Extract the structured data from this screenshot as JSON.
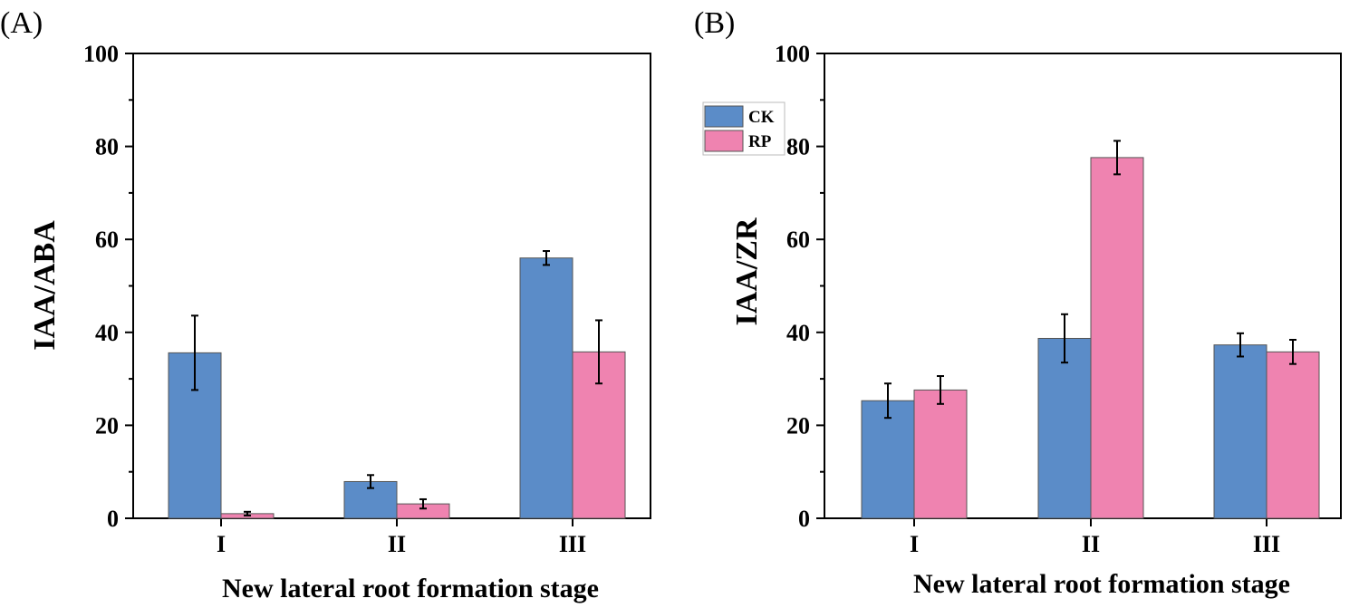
{
  "colors": {
    "CK": "#5b8cc8",
    "RP": "#ef83b0",
    "bar_stroke": "#555555"
  },
  "chart_data": [
    {
      "type": "bar",
      "panel_label": "(A)",
      "categories": [
        "I",
        "II",
        "III"
      ],
      "series": [
        {
          "name": "CK",
          "values": [
            35.6,
            7.9,
            56.0
          ],
          "errors": [
            8.0,
            1.4,
            1.5
          ]
        },
        {
          "name": "RP",
          "values": [
            1.0,
            3.1,
            35.8
          ],
          "errors": [
            0.4,
            1.0,
            6.8
          ]
        }
      ],
      "title": "",
      "xlabel": "New lateral root formation stage",
      "ylabel": "IAA/ABA",
      "ylim": [
        0,
        100
      ],
      "yticks": [
        "0",
        "20",
        "40",
        "60",
        "80",
        "100"
      ],
      "legend": null
    },
    {
      "type": "bar",
      "panel_label": "(B)",
      "categories": [
        "I",
        "II",
        "III"
      ],
      "series": [
        {
          "name": "CK",
          "values": [
            25.3,
            38.7,
            37.3
          ],
          "errors": [
            3.7,
            5.2,
            2.5
          ]
        },
        {
          "name": "RP",
          "values": [
            27.6,
            77.6,
            35.8
          ],
          "errors": [
            3.0,
            3.6,
            2.6
          ]
        }
      ],
      "title": "",
      "xlabel": "New lateral root formation stage",
      "ylabel": "IAA/ZR",
      "ylim": [
        0,
        100
      ],
      "yticks": [
        "0",
        "20",
        "40",
        "60",
        "80",
        "100"
      ],
      "legend": {
        "placement": "top-left-outside",
        "entries": [
          "CK",
          "RP"
        ]
      }
    }
  ]
}
